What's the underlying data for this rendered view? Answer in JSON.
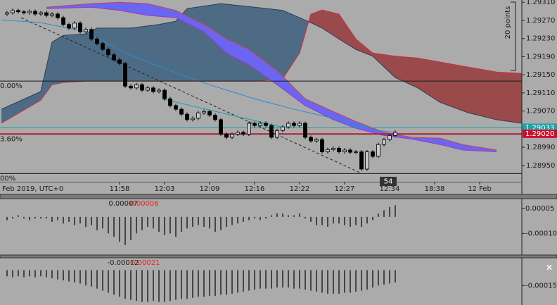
{
  "chart_data": [
    {
      "type": "candlestick",
      "x": [
        0,
        1,
        2,
        3,
        4,
        5,
        6,
        7,
        8,
        9,
        10,
        11,
        12,
        13,
        14,
        15,
        16,
        17,
        18,
        19,
        20,
        21,
        22,
        23,
        24,
        25,
        26,
        27,
        28,
        29,
        30,
        31,
        32,
        33,
        34,
        35,
        36,
        37,
        38,
        39,
        40,
        41,
        42,
        43,
        44,
        45,
        46,
        47,
        48,
        49,
        50,
        51,
        52,
        53,
        54,
        55,
        56,
        57,
        58,
        59,
        60,
        61,
        62,
        63,
        64,
        65,
        66,
        67,
        68,
        69
      ],
      "open": [
        1.29284,
        1.29287,
        1.29292,
        1.29289,
        1.29287,
        1.2929,
        1.29284,
        1.29287,
        1.29281,
        1.29284,
        1.29276,
        1.29261,
        1.29253,
        1.29264,
        1.29245,
        1.2925,
        1.29229,
        1.29219,
        1.29206,
        1.29194,
        1.29183,
        1.29175,
        1.29125,
        1.29121,
        1.29128,
        1.29116,
        1.29121,
        1.29113,
        1.29116,
        1.29097,
        1.29082,
        1.29074,
        1.29063,
        1.29051,
        1.29054,
        1.29066,
        1.29069,
        1.29061,
        1.29051,
        1.29019,
        1.29012,
        1.29019,
        1.29023,
        1.29019,
        1.29043,
        1.29038,
        1.29043,
        1.29038,
        1.29012,
        1.29027,
        1.29035,
        1.29043,
        1.29038,
        1.29043,
        1.29012,
        1.29004,
        1.29007,
        1.2898,
        1.28985,
        1.28988,
        1.2898,
        1.28984,
        1.28979,
        1.2898,
        1.28942,
        1.2898,
        1.2897,
        1.28996,
        1.29007,
        1.29016
      ],
      "high": [
        1.29291,
        1.29296,
        1.29296,
        1.29293,
        1.29294,
        1.29294,
        1.29291,
        1.29291,
        1.29288,
        1.29288,
        1.2928,
        1.29265,
        1.29268,
        1.29268,
        1.29254,
        1.29254,
        1.29233,
        1.29223,
        1.2921,
        1.29198,
        1.29187,
        1.29179,
        1.29129,
        1.29132,
        1.29132,
        1.29125,
        1.29125,
        1.2912,
        1.2912,
        1.29101,
        1.29086,
        1.29078,
        1.29067,
        1.29058,
        1.2907,
        1.29073,
        1.29073,
        1.29065,
        1.29055,
        1.29023,
        1.29023,
        1.29027,
        1.29027,
        1.29047,
        1.29047,
        1.29047,
        1.29047,
        1.29042,
        1.29031,
        1.29039,
        1.29047,
        1.29047,
        1.29047,
        1.29047,
        1.29016,
        1.29011,
        1.29011,
        1.28989,
        1.28992,
        1.28992,
        1.28988,
        1.28988,
        1.28984,
        1.28984,
        1.28984,
        1.28984,
        1.29,
        1.29011,
        1.2902,
        1.29027
      ],
      "low": [
        1.2928,
        1.29283,
        1.29285,
        1.29283,
        1.29283,
        1.2928,
        1.2928,
        1.29277,
        1.29277,
        1.29272,
        1.29257,
        1.29249,
        1.29249,
        1.29241,
        1.29241,
        1.29225,
        1.29215,
        1.29202,
        1.2919,
        1.29179,
        1.29171,
        1.29121,
        1.29117,
        1.29117,
        1.29112,
        1.29112,
        1.29109,
        1.29109,
        1.29093,
        1.29078,
        1.2907,
        1.29059,
        1.29047,
        1.29047,
        1.2905,
        1.29062,
        1.29057,
        1.29047,
        1.29015,
        1.29008,
        1.29008,
        1.29015,
        1.29015,
        1.29015,
        1.29034,
        1.29034,
        1.29034,
        1.29008,
        1.29008,
        1.29023,
        1.29031,
        1.29034,
        1.29034,
        1.29008,
        1.29,
        1.29,
        1.28976,
        1.28976,
        1.28981,
        1.28976,
        1.28976,
        1.28975,
        1.28975,
        1.28938,
        1.28938,
        1.28966,
        1.28966,
        1.28992,
        1.29003,
        1.29012
      ],
      "close": [
        1.29287,
        1.29292,
        1.29289,
        1.29287,
        1.2929,
        1.29284,
        1.29287,
        1.29281,
        1.29284,
        1.29276,
        1.29261,
        1.29253,
        1.29264,
        1.29245,
        1.2925,
        1.29229,
        1.29219,
        1.29206,
        1.29194,
        1.29183,
        1.29175,
        1.29125,
        1.29121,
        1.29128,
        1.29116,
        1.29121,
        1.29113,
        1.29116,
        1.29097,
        1.29082,
        1.29074,
        1.29063,
        1.29051,
        1.29054,
        1.29066,
        1.29069,
        1.29061,
        1.29051,
        1.29019,
        1.29012,
        1.29019,
        1.29023,
        1.29019,
        1.29043,
        1.29038,
        1.29043,
        1.29038,
        1.29012,
        1.29027,
        1.29035,
        1.29043,
        1.29038,
        1.29043,
        1.29012,
        1.29004,
        1.29007,
        1.2898,
        1.28985,
        1.28988,
        1.2898,
        1.28984,
        1.28979,
        1.2898,
        1.28942,
        1.2898,
        1.2897,
        1.28996,
        1.29007,
        1.29016,
        1.29023
      ],
      "colors": {
        "up": "#c8c8c8",
        "down": "#000000"
      },
      "xlim": [
        -1.25,
        91.5
      ],
      "xticks": [
        {
          "value": 20,
          "label": "11:58"
        },
        {
          "value": 28,
          "label": "12:03"
        },
        {
          "value": 36,
          "label": "12:09"
        },
        {
          "value": 44,
          "label": "12:16"
        },
        {
          "value": 52,
          "label": "12:22"
        },
        {
          "value": 60,
          "label": "12:27"
        },
        {
          "value": 68,
          "label": "12:34"
        },
        {
          "value": 76,
          "label": "18:38"
        },
        {
          "value": 84,
          "label": "12 Feb"
        }
      ],
      "date_label": "Feb 2019, UTC+0",
      "ylim": [
        1.28914,
        1.29315
      ],
      "yticks": [
        {
          "value": 1.2931,
          "label": "1.29310"
        },
        {
          "value": 1.2927,
          "label": "1.29270"
        },
        {
          "value": 1.2923,
          "label": "1.29230"
        },
        {
          "value": 1.2919,
          "label": "1.29190"
        },
        {
          "value": 1.2915,
          "label": "1.29150"
        },
        {
          "value": 1.2911,
          "label": "1.29110"
        },
        {
          "value": 1.2907,
          "label": "1.29070"
        },
        {
          "value": 1.2899,
          "label": "1.28990"
        },
        {
          "value": 1.2895,
          "label": "1.28950"
        }
      ],
      "cloud": {
        "x": [
          -1,
          6,
          8,
          10,
          14,
          16,
          22,
          27,
          30,
          32,
          38,
          44,
          49,
          52,
          54,
          56,
          59,
          62,
          65,
          69,
          73,
          77,
          82,
          87,
          91.5
        ],
        "span_a": [
          1.29074,
          1.29113,
          1.29222,
          1.29237,
          1.2924,
          1.29253,
          1.29253,
          1.29261,
          1.29268,
          1.29296,
          1.29307,
          1.29299,
          1.29292,
          1.29276,
          1.29265,
          1.29253,
          1.29229,
          1.29206,
          1.29191,
          1.29144,
          1.29121,
          1.29089,
          1.29066,
          1.29051,
          1.29043
        ],
        "span_b": [
          1.29043,
          1.29094,
          1.29128,
          1.29133,
          1.29136,
          1.29136,
          1.29136,
          1.29136,
          1.29136,
          1.29136,
          1.29136,
          1.29136,
          1.29141,
          1.29198,
          1.29284,
          1.29293,
          1.29284,
          1.29229,
          1.29198,
          1.29191,
          1.29187,
          1.29178,
          1.29167,
          1.29156,
          1.29153
        ],
        "colors": [
          "#4e6b86",
          "#9a4a4a"
        ],
        "line_colors": [
          "#2b3d52",
          "#c8304a"
        ]
      },
      "band": {
        "x": [
          7,
          15,
          20,
          25,
          30,
          35,
          39,
          43,
          48,
          53,
          58,
          62,
          67,
          72,
          77,
          81,
          87
        ],
        "upper": [
          1.29299,
          1.29307,
          1.2931,
          1.29307,
          1.29292,
          1.29261,
          1.29229,
          1.29206,
          1.29159,
          1.29097,
          1.29069,
          1.29047,
          1.29023,
          1.29012,
          1.2901,
          1.28996,
          1.28984
        ],
        "lower": [
          1.29296,
          1.29299,
          1.29292,
          1.29281,
          1.29276,
          1.29245,
          1.29198,
          1.29172,
          1.29128,
          1.29082,
          1.29051,
          1.29032,
          1.29016,
          1.29008,
          1.28996,
          1.28984,
          1.2898
        ],
        "color": "#6a66f2",
        "line_colors": [
          "#d0404a",
          "#9a3ab8"
        ]
      },
      "ma": {
        "x": [
          -1,
          6,
          14,
          21,
          29,
          36,
          44,
          51,
          59,
          66,
          69
        ],
        "values": [
          1.29271,
          1.29265,
          1.29245,
          1.29198,
          1.29159,
          1.29128,
          1.29097,
          1.29074,
          1.29051,
          1.29027,
          1.29023
        ],
        "color": "#2a8ccf"
      },
      "levels": [
        {
          "value": 1.29136,
          "label": "0.00%"
        },
        {
          "value": 1.29019,
          "label": "3.60%"
        },
        {
          "value": 1.28932,
          "label": "00%"
        }
      ],
      "level_colors": [
        "#1a1a1a",
        "#8a1020",
        "#1a1a1a"
      ],
      "price_lines": [
        {
          "value": 1.29033,
          "label": "1.29033",
          "color": "#1aa3a8"
        },
        {
          "value": 1.2902,
          "label": "1.29020",
          "color": "#c8102e"
        }
      ],
      "trendlines": [
        {
          "x": [
            2.5,
            62.75
          ],
          "y": [
            1.29276,
            1.28934
          ],
          "color": "#222222",
          "dashed": true
        },
        {
          "x": [
            27.5,
            48.75
          ],
          "y": [
            1.29097,
            1.29035
          ],
          "color": "#1aa3a8",
          "dashed": false
        }
      ],
      "ruler_label": "20 points",
      "bar_label": "54"
    },
    {
      "type": "bar",
      "x": [
        0,
        1,
        2,
        3,
        4,
        5,
        6,
        7,
        8,
        9,
        10,
        11,
        12,
        13,
        14,
        15,
        16,
        17,
        18,
        19,
        20,
        21,
        22,
        23,
        24,
        25,
        26,
        27,
        28,
        29,
        30,
        31,
        32,
        33,
        34,
        35,
        36,
        37,
        38,
        39,
        40,
        41,
        42,
        43,
        44,
        45,
        46,
        47,
        48,
        49,
        50,
        51,
        52,
        53,
        54,
        55,
        56,
        57,
        58,
        59,
        60,
        61,
        62,
        63,
        64,
        65,
        66,
        67,
        68,
        69
      ],
      "values": [
        -2e-05,
        -1e-05,
        1e-05,
        -1e-05,
        -2e-05,
        -1e-05,
        -1e-05,
        -1e-05,
        -3e-05,
        -2e-05,
        -4e-05,
        -3e-05,
        -5e-05,
        -4e-05,
        -6e-05,
        -5e-05,
        -8e-05,
        -7e-05,
        -0.0001,
        -0.00012,
        -0.00015,
        -0.00017,
        -0.00014,
        -0.0001,
        -8e-05,
        -6e-05,
        -7e-05,
        -9e-05,
        -0.00011,
        -0.0001,
        -0.00012,
        -9e-05,
        -7e-05,
        -6e-05,
        -5e-05,
        -6e-05,
        -7e-05,
        -9e-05,
        -8e-05,
        -6e-05,
        -5e-05,
        -4e-05,
        -3e-05,
        -2e-05,
        -1e-05,
        -2e-05,
        -1e-05,
        1e-05,
        2e-05,
        2e-05,
        1e-05,
        1e-05,
        2e-05,
        -1e-05,
        -3e-05,
        -5e-05,
        -5e-05,
        -6e-05,
        -4e-05,
        -4e-05,
        -5e-05,
        -6e-05,
        -5e-05,
        -6e-05,
        -4e-05,
        -2e-05,
        2e-05,
        4e-05,
        6e-05,
        7e-05
      ],
      "color": "#1a1a1a",
      "xlim": [
        -1.25,
        91.5
      ],
      "ylim": [
        -0.00023,
        0.00011
      ],
      "yticks": [
        {
          "value": 5e-05,
          "label": "0.00005"
        },
        {
          "value": -0.0001,
          "label": "-0.00010"
        }
      ],
      "readout": [
        {
          "text": "0.00007",
          "color": "#1a1a1a"
        },
        {
          "text": "0.00006",
          "color": "#e8231e"
        }
      ]
    },
    {
      "type": "bar",
      "x": [
        0,
        1,
        2,
        3,
        4,
        5,
        6,
        7,
        8,
        9,
        10,
        11,
        12,
        13,
        14,
        15,
        16,
        17,
        18,
        19,
        20,
        21,
        22,
        23,
        24,
        25,
        26,
        27,
        28,
        29,
        30,
        31,
        32,
        33,
        34,
        35,
        36,
        37,
        38,
        39,
        40,
        41,
        42,
        43,
        44,
        45,
        46,
        47,
        48,
        49,
        50,
        51,
        52,
        53,
        54,
        55,
        56,
        57,
        58,
        59,
        60,
        61,
        62,
        63,
        64,
        65,
        66,
        67,
        68,
        69
      ],
      "values": [
        -6e-05,
        -7e-05,
        -6e-05,
        -7e-05,
        -6e-05,
        -7e-05,
        -6e-05,
        -7e-05,
        -8e-05,
        -9e-05,
        -0.0001,
        -0.00011,
        -0.00012,
        -0.00013,
        -0.00015,
        -0.00016,
        -0.00018,
        -0.0002,
        -0.00022,
        -0.00024,
        -0.00026,
        -0.00028,
        -0.00029,
        -0.0003,
        -0.00031,
        -0.00031,
        -0.0003,
        -0.00031,
        -0.00031,
        -0.0003,
        -0.00029,
        -0.00028,
        -0.00028,
        -0.00027,
        -0.00026,
        -0.00026,
        -0.00025,
        -0.00025,
        -0.00024,
        -0.00024,
        -0.00023,
        -0.00022,
        -0.00021,
        -0.0002,
        -0.00019,
        -0.00018,
        -0.00018,
        -0.00018,
        -0.00017,
        -0.00017,
        -0.00017,
        -0.00018,
        -0.00018,
        -0.00019,
        -0.0002,
        -0.00021,
        -0.00022,
        -0.00023,
        -0.00023,
        -0.00023,
        -0.00022,
        -0.00022,
        -0.00021,
        -0.0002,
        -0.00019,
        -0.00017,
        -0.00015,
        -0.00014,
        -0.00013,
        -0.00012
      ],
      "color": "#1a1a1a",
      "xlim": [
        -1.25,
        91.5
      ],
      "ylim": [
        -0.00034,
        0.00012
      ],
      "yticks": [
        {
          "value": -0.00015,
          "label": "-0.00015"
        }
      ],
      "readout": [
        {
          "text": "-0.00012",
          "color": "#1a1a1a"
        },
        {
          "text": "-0.00021",
          "color": "#e8231e"
        }
      ],
      "close_label": "×"
    }
  ]
}
